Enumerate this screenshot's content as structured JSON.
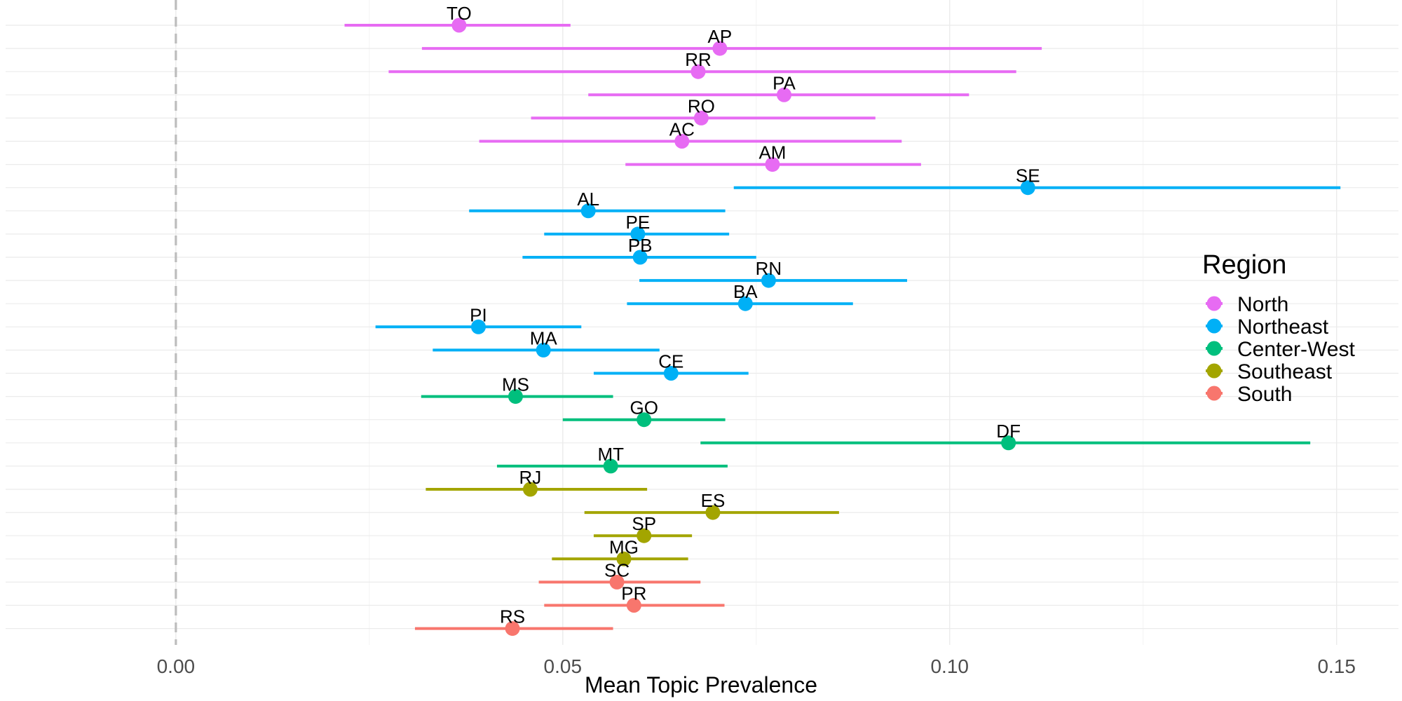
{
  "chart_data": {
    "type": "scatter",
    "subtype": "dot-and-whisker",
    "xlabel": "Mean Topic Prevalence",
    "ylabel": "",
    "xlim": [
      -0.022,
      0.158
    ],
    "x_ticks": [
      0.0,
      0.05,
      0.1,
      0.15
    ],
    "x_tick_labels": [
      "0.00",
      "0.05",
      "0.10",
      "0.15"
    ],
    "reference_line": {
      "x": 0.0,
      "style": "dashed",
      "color": "#bdbdbd"
    },
    "grid": true,
    "legend": {
      "title": "Region",
      "placement": "right",
      "entries": [
        {
          "name": "North",
          "color": "#E76BF3"
        },
        {
          "name": "Northeast",
          "color": "#00B0F6"
        },
        {
          "name": "Center-West",
          "color": "#00BF7D"
        },
        {
          "name": "Southeast",
          "color": "#A3A500"
        },
        {
          "name": "South",
          "color": "#F8766D"
        }
      ]
    },
    "points": [
      {
        "label": "TO",
        "region": "North",
        "mean": 0.0366,
        "low": 0.0218,
        "high": 0.051
      },
      {
        "label": "AP",
        "region": "North",
        "mean": 0.0703,
        "low": 0.0318,
        "high": 0.1119
      },
      {
        "label": "RR",
        "region": "North",
        "mean": 0.0675,
        "low": 0.0275,
        "high": 0.1086
      },
      {
        "label": "PA",
        "region": "North",
        "mean": 0.0786,
        "low": 0.0533,
        "high": 0.1025
      },
      {
        "label": "RO",
        "region": "North",
        "mean": 0.0679,
        "low": 0.0459,
        "high": 0.0904
      },
      {
        "label": "AC",
        "region": "North",
        "mean": 0.0654,
        "low": 0.0392,
        "high": 0.0938
      },
      {
        "label": "AM",
        "region": "North",
        "mean": 0.0771,
        "low": 0.0581,
        "high": 0.0963
      },
      {
        "label": "SE",
        "region": "Northeast",
        "mean": 0.1101,
        "low": 0.0721,
        "high": 0.1505
      },
      {
        "label": "AL",
        "region": "Northeast",
        "mean": 0.0533,
        "low": 0.0379,
        "high": 0.071
      },
      {
        "label": "PE",
        "region": "Northeast",
        "mean": 0.0597,
        "low": 0.0476,
        "high": 0.0715
      },
      {
        "label": "PB",
        "region": "Northeast",
        "mean": 0.06,
        "low": 0.0448,
        "high": 0.075
      },
      {
        "label": "RN",
        "region": "Northeast",
        "mean": 0.0766,
        "low": 0.0599,
        "high": 0.0945
      },
      {
        "label": "BA",
        "region": "Northeast",
        "mean": 0.0736,
        "low": 0.0583,
        "high": 0.0875
      },
      {
        "label": "PI",
        "region": "Northeast",
        "mean": 0.0391,
        "low": 0.0258,
        "high": 0.0524
      },
      {
        "label": "MA",
        "region": "Northeast",
        "mean": 0.0475,
        "low": 0.0332,
        "high": 0.0625
      },
      {
        "label": "CE",
        "region": "Northeast",
        "mean": 0.064,
        "low": 0.054,
        "high": 0.074
      },
      {
        "label": "MS",
        "region": "Center-West",
        "mean": 0.0439,
        "low": 0.0317,
        "high": 0.0565
      },
      {
        "label": "GO",
        "region": "Center-West",
        "mean": 0.0605,
        "low": 0.05,
        "high": 0.071
      },
      {
        "label": "DF",
        "region": "Center-West",
        "mean": 0.1076,
        "low": 0.0678,
        "high": 0.1466
      },
      {
        "label": "MT",
        "region": "Center-West",
        "mean": 0.0562,
        "low": 0.0415,
        "high": 0.0713
      },
      {
        "label": "RJ",
        "region": "Southeast",
        "mean": 0.0458,
        "low": 0.0323,
        "high": 0.0609
      },
      {
        "label": "ES",
        "region": "Southeast",
        "mean": 0.0694,
        "low": 0.0528,
        "high": 0.0857
      },
      {
        "label": "SP",
        "region": "Southeast",
        "mean": 0.0605,
        "low": 0.054,
        "high": 0.0667
      },
      {
        "label": "MG",
        "region": "Southeast",
        "mean": 0.0579,
        "low": 0.0486,
        "high": 0.0662
      },
      {
        "label": "SC",
        "region": "South",
        "mean": 0.057,
        "low": 0.0469,
        "high": 0.0678
      },
      {
        "label": "PR",
        "region": "South",
        "mean": 0.0592,
        "low": 0.0476,
        "high": 0.0709
      },
      {
        "label": "RS",
        "region": "South",
        "mean": 0.0435,
        "low": 0.0309,
        "high": 0.0565
      }
    ]
  }
}
